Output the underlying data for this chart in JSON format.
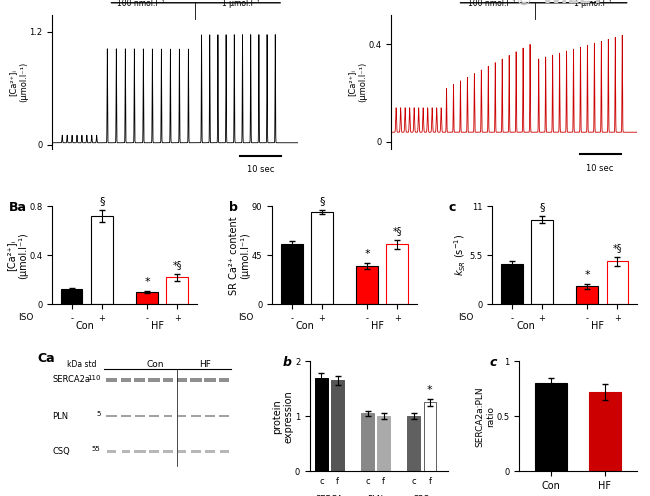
{
  "Ba_ylim": [
    0,
    0.8
  ],
  "Ba_yticks": [
    0,
    0.4,
    0.8
  ],
  "Ba_values": [
    0.12,
    0.72,
    0.1,
    0.22
  ],
  "Ba_errors": [
    0.01,
    0.05,
    0.01,
    0.03
  ],
  "Ba_colors": [
    "black",
    "white",
    "red",
    "white"
  ],
  "Ba_edgecolors": [
    "black",
    "black",
    "black",
    "red"
  ],
  "Bb_ylim": [
    0,
    90
  ],
  "Bb_yticks": [
    0,
    45,
    90
  ],
  "Bb_values": [
    55,
    85,
    35,
    55
  ],
  "Bb_errors": [
    3,
    2,
    3,
    4
  ],
  "Bb_colors": [
    "black",
    "white",
    "red",
    "white"
  ],
  "Bb_edgecolors": [
    "black",
    "black",
    "black",
    "red"
  ],
  "Bc_ylim": [
    0,
    11
  ],
  "Bc_yticks": [
    0,
    5.5,
    11
  ],
  "Bc_values": [
    4.5,
    9.5,
    2.0,
    4.8
  ],
  "Bc_errors": [
    0.3,
    0.4,
    0.3,
    0.5
  ],
  "Bc_colors": [
    "black",
    "white",
    "red",
    "white"
  ],
  "Bc_edgecolors": [
    "black",
    "black",
    "black",
    "red"
  ],
  "x_labels_iso": [
    "-",
    "+",
    "-",
    "+"
  ],
  "x_labels_group": [
    "Con",
    "HF"
  ],
  "Cb_ylabel": "protein\nexpression",
  "Cb_ylim": [
    0,
    2
  ],
  "Cb_yticks": [
    0,
    1,
    2
  ],
  "Cb_categories": [
    "SERCA",
    "PLN",
    "CSQ"
  ],
  "Cb_c_values": [
    1.7,
    1.05,
    1.0
  ],
  "Cb_f_values": [
    1.65,
    1.0,
    1.25
  ],
  "Cb_c_errors": [
    0.08,
    0.05,
    0.05
  ],
  "Cb_f_errors": [
    0.08,
    0.05,
    0.07
  ],
  "Cc_ylabel": "SERCA2a:PLN\nratio",
  "Cc_ylim": [
    0,
    1
  ],
  "Cc_yticks": [
    0,
    0.5,
    1
  ],
  "Cc_values": [
    0.8,
    0.72
  ],
  "Cc_errors": [
    0.05,
    0.07
  ],
  "Cc_colors": [
    "black",
    "#cc0000"
  ],
  "Cc_edgecolors": [
    "black",
    "#cc0000"
  ],
  "Cc_xlabels": [
    "Con",
    "HF"
  ]
}
